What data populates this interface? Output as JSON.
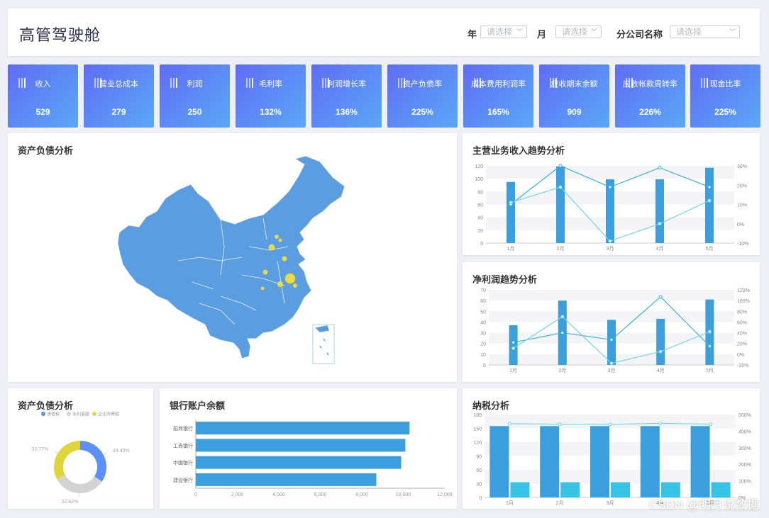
{
  "header": {
    "title": "高管驾驶舱",
    "filters": [
      {
        "label": "年",
        "placeholder": "请选择"
      },
      {
        "label": "月",
        "placeholder": "请选择"
      },
      {
        "label": "分公司名称",
        "placeholder": "请选择"
      }
    ]
  },
  "kpis": [
    {
      "label": "收入",
      "value": "529"
    },
    {
      "label": "营业总成本",
      "value": "279"
    },
    {
      "label": "利润",
      "value": "250"
    },
    {
      "label": "毛利率",
      "value": "132%"
    },
    {
      "label": "利润增长率",
      "value": "136%"
    },
    {
      "label": "资产负债率",
      "value": "225%"
    },
    {
      "label": "成本费用利润率",
      "value": "165%"
    },
    {
      "label": "应收期末余额",
      "value": "909"
    },
    {
      "label": "应收帐款周转率",
      "value": "226%"
    },
    {
      "label": "现金比率",
      "value": "225%"
    }
  ],
  "map_panel": {
    "title": "资产负债分析"
  },
  "colors": {
    "bar": "#3a9fdc",
    "line_dark": "#33b5d8",
    "line_light": "#6fd8e8",
    "map": "#5a9de0",
    "kpi_start": "#5f6cf5",
    "kpi_end": "#5aa8f6"
  },
  "chart_data": [
    {
      "id": "revenue",
      "type": "bar",
      "title": "主营业务收入趋势分析",
      "categories": [
        "1月",
        "2月",
        "3月",
        "4月",
        "5月"
      ],
      "ylim": [
        0,
        120
      ],
      "yticks": [
        "0",
        "20",
        "40",
        "60",
        "80",
        "100",
        "120"
      ],
      "y2lim": [
        -10,
        30
      ],
      "y2ticks": [
        "-10%",
        "0%",
        "10%",
        "20%",
        "30%"
      ],
      "bars": [
        95,
        119,
        99,
        99,
        117
      ],
      "lines": [
        {
          "values": [
            10,
            30,
            19,
            29,
            19
          ],
          "color": "dark"
        },
        {
          "values": [
            11,
            19,
            -9,
            0,
            12
          ],
          "color": "light"
        }
      ]
    },
    {
      "id": "net_profit",
      "type": "bar",
      "title": "净利润趋势分析",
      "categories": [
        "1月",
        "2月",
        "3月",
        "4月",
        "5月"
      ],
      "ylim": [
        0,
        70
      ],
      "yticks": [
        "0",
        "10",
        "20",
        "30",
        "40",
        "50",
        "60",
        "70"
      ],
      "y2lim": [
        -20,
        120
      ],
      "y2ticks": [
        "-20%",
        "0%",
        "20%",
        "40%",
        "60%",
        "80%",
        "100%",
        "120%"
      ],
      "bars": [
        37,
        60,
        42,
        43,
        61
      ],
      "lines": [
        {
          "values": [
            22,
            40,
            27,
            107,
            15
          ],
          "color": "dark"
        },
        {
          "values": [
            11,
            70,
            -17,
            5,
            42
          ],
          "color": "light"
        }
      ]
    },
    {
      "id": "assets_pie",
      "type": "pie",
      "title": "资产负债分析",
      "legend": [
        "增值税",
        "水利基建",
        "企业所得税"
      ],
      "values": [
        34.4,
        32.82,
        32.77
      ],
      "labels": [
        "34.40%",
        "32.82%",
        "32.77%"
      ],
      "colors": [
        "#5b8ff9",
        "#d3d3d3",
        "#dfd43a"
      ]
    },
    {
      "id": "bank",
      "type": "bar",
      "title": "银行账户余额",
      "categories": [
        "招商银行",
        "工商银行",
        "中国银行",
        "建设银行"
      ],
      "values": [
        10300,
        10100,
        9900,
        8700
      ],
      "xlim": [
        0,
        12000
      ],
      "xticks": [
        "0",
        "2,000",
        "4,000",
        "6,000",
        "8,000",
        "10,000",
        "12,000"
      ]
    },
    {
      "id": "tax",
      "type": "bar",
      "title": "纳税分析",
      "categories": [
        "1月",
        "2月",
        "3月",
        "4月",
        "5月"
      ],
      "ylim": [
        0,
        180
      ],
      "yticks": [
        "0",
        "30",
        "60",
        "90",
        "120",
        "150",
        "180"
      ],
      "y2lim": [
        0,
        500
      ],
      "y2ticks": [
        "0%",
        "100%",
        "200%",
        "300%",
        "400%",
        "500%"
      ],
      "bars_a": [
        155,
        155,
        155,
        155,
        155
      ],
      "bars_b": [
        33,
        33,
        33,
        33,
        33
      ],
      "lines": [
        {
          "values": [
            445,
            442,
            441,
            447,
            442
          ],
          "color": "light"
        }
      ]
    }
  ],
  "watermark": "CSDN @明月说数据"
}
